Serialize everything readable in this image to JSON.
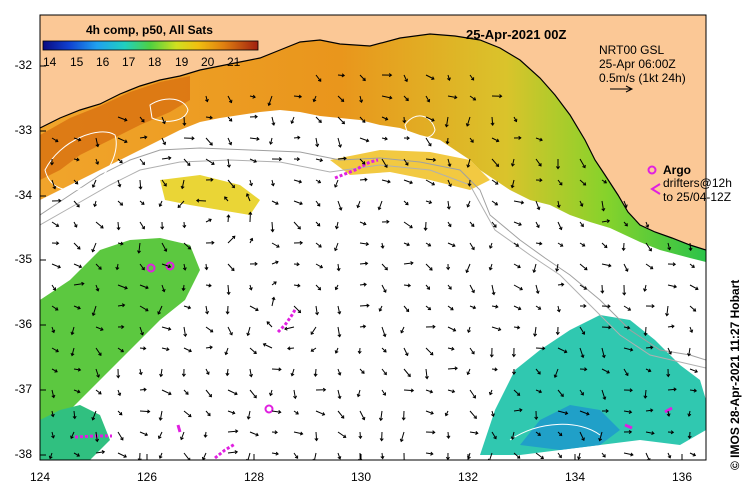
{
  "map": {
    "title": "25-Apr-2021 00Z",
    "credit": "© IMOS 28-Apr-2021 11:27 Hobart",
    "colorbar": {
      "title": "4h comp, p50, All Sats",
      "ticks": [
        "14",
        "15",
        "16",
        "17",
        "18",
        "19",
        "20",
        "21"
      ]
    },
    "velocity": {
      "line1": "NRT00 GSL",
      "line2": "25-Apr 06:00Z",
      "line3": "0.5m/s (1kt 24h)"
    },
    "argo": {
      "label": "Argo",
      "drifters1": "drifters@12h",
      "drifters2": "to 25/04-12Z"
    },
    "axes": {
      "y_ticks": [
        "-32",
        "-33",
        "-34",
        "-35",
        "-36",
        "-37",
        "-38"
      ],
      "x_ticks": [
        "124",
        "126",
        "128",
        "130",
        "132",
        "134",
        "136"
      ]
    },
    "colors": {
      "land": "#fbc896",
      "coast": "#000000",
      "bathy": "#a0a0a0",
      "argo": "#e020e0"
    }
  }
}
